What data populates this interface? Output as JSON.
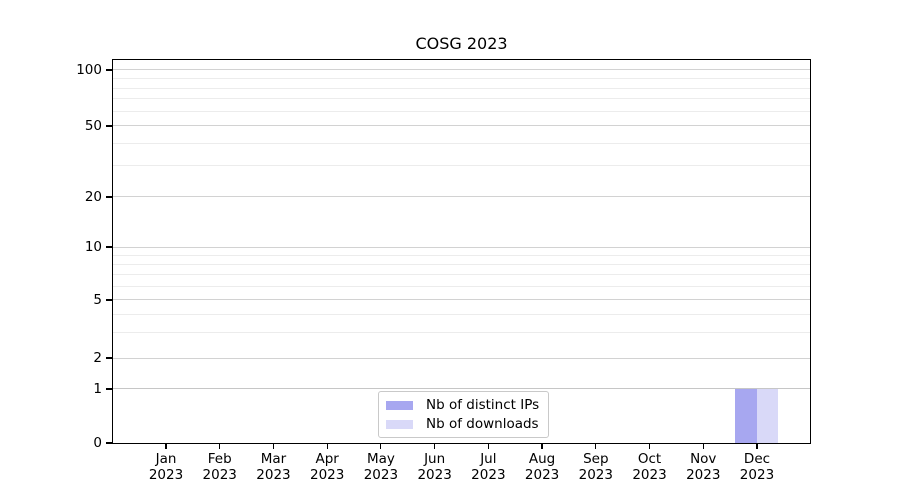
{
  "page": {
    "background": "#ffffff"
  },
  "chart_data": {
    "type": "bar",
    "title": "COSG 2023",
    "x": {
      "months": [
        "Jan",
        "Feb",
        "Mar",
        "Apr",
        "May",
        "Jun",
        "Jul",
        "Aug",
        "Sep",
        "Oct",
        "Nov",
        "Dec"
      ],
      "year": "2023"
    },
    "series": [
      {
        "name": "Nb of distinct IPs",
        "color": "#a7a7f0",
        "values": [
          0,
          0,
          0,
          0,
          0,
          0,
          0,
          0,
          0,
          0,
          0,
          1
        ]
      },
      {
        "name": "Nb of downloads",
        "color": "#d9d9f8",
        "values": [
          0,
          0,
          0,
          0,
          0,
          0,
          0,
          0,
          0,
          0,
          0,
          1
        ]
      }
    ],
    "yaxis": {
      "scale": "symlog",
      "major_ticks": [
        0,
        1,
        2,
        5,
        10,
        20,
        50,
        100
      ],
      "minor_ticks": [
        3,
        4,
        6,
        7,
        8,
        9,
        30,
        40,
        60,
        70,
        80,
        90
      ],
      "ylim": [
        0,
        114
      ]
    },
    "legend": {
      "entries": [
        "Nb of distinct IPs",
        "Nb of downloads"
      ],
      "location": "inside-bottom-center"
    },
    "grid": {
      "horizontal": true,
      "which": "both"
    }
  },
  "colors": {
    "grid_major": "#d2d2d2",
    "grid_minor": "#ececec",
    "grid_value1": "#c6c6c6",
    "axis": "#000000",
    "legend_border": "#c9c9c9",
    "bar_distinct_ips": "#a7a7f0",
    "bar_downloads": "#d9d9f8"
  }
}
